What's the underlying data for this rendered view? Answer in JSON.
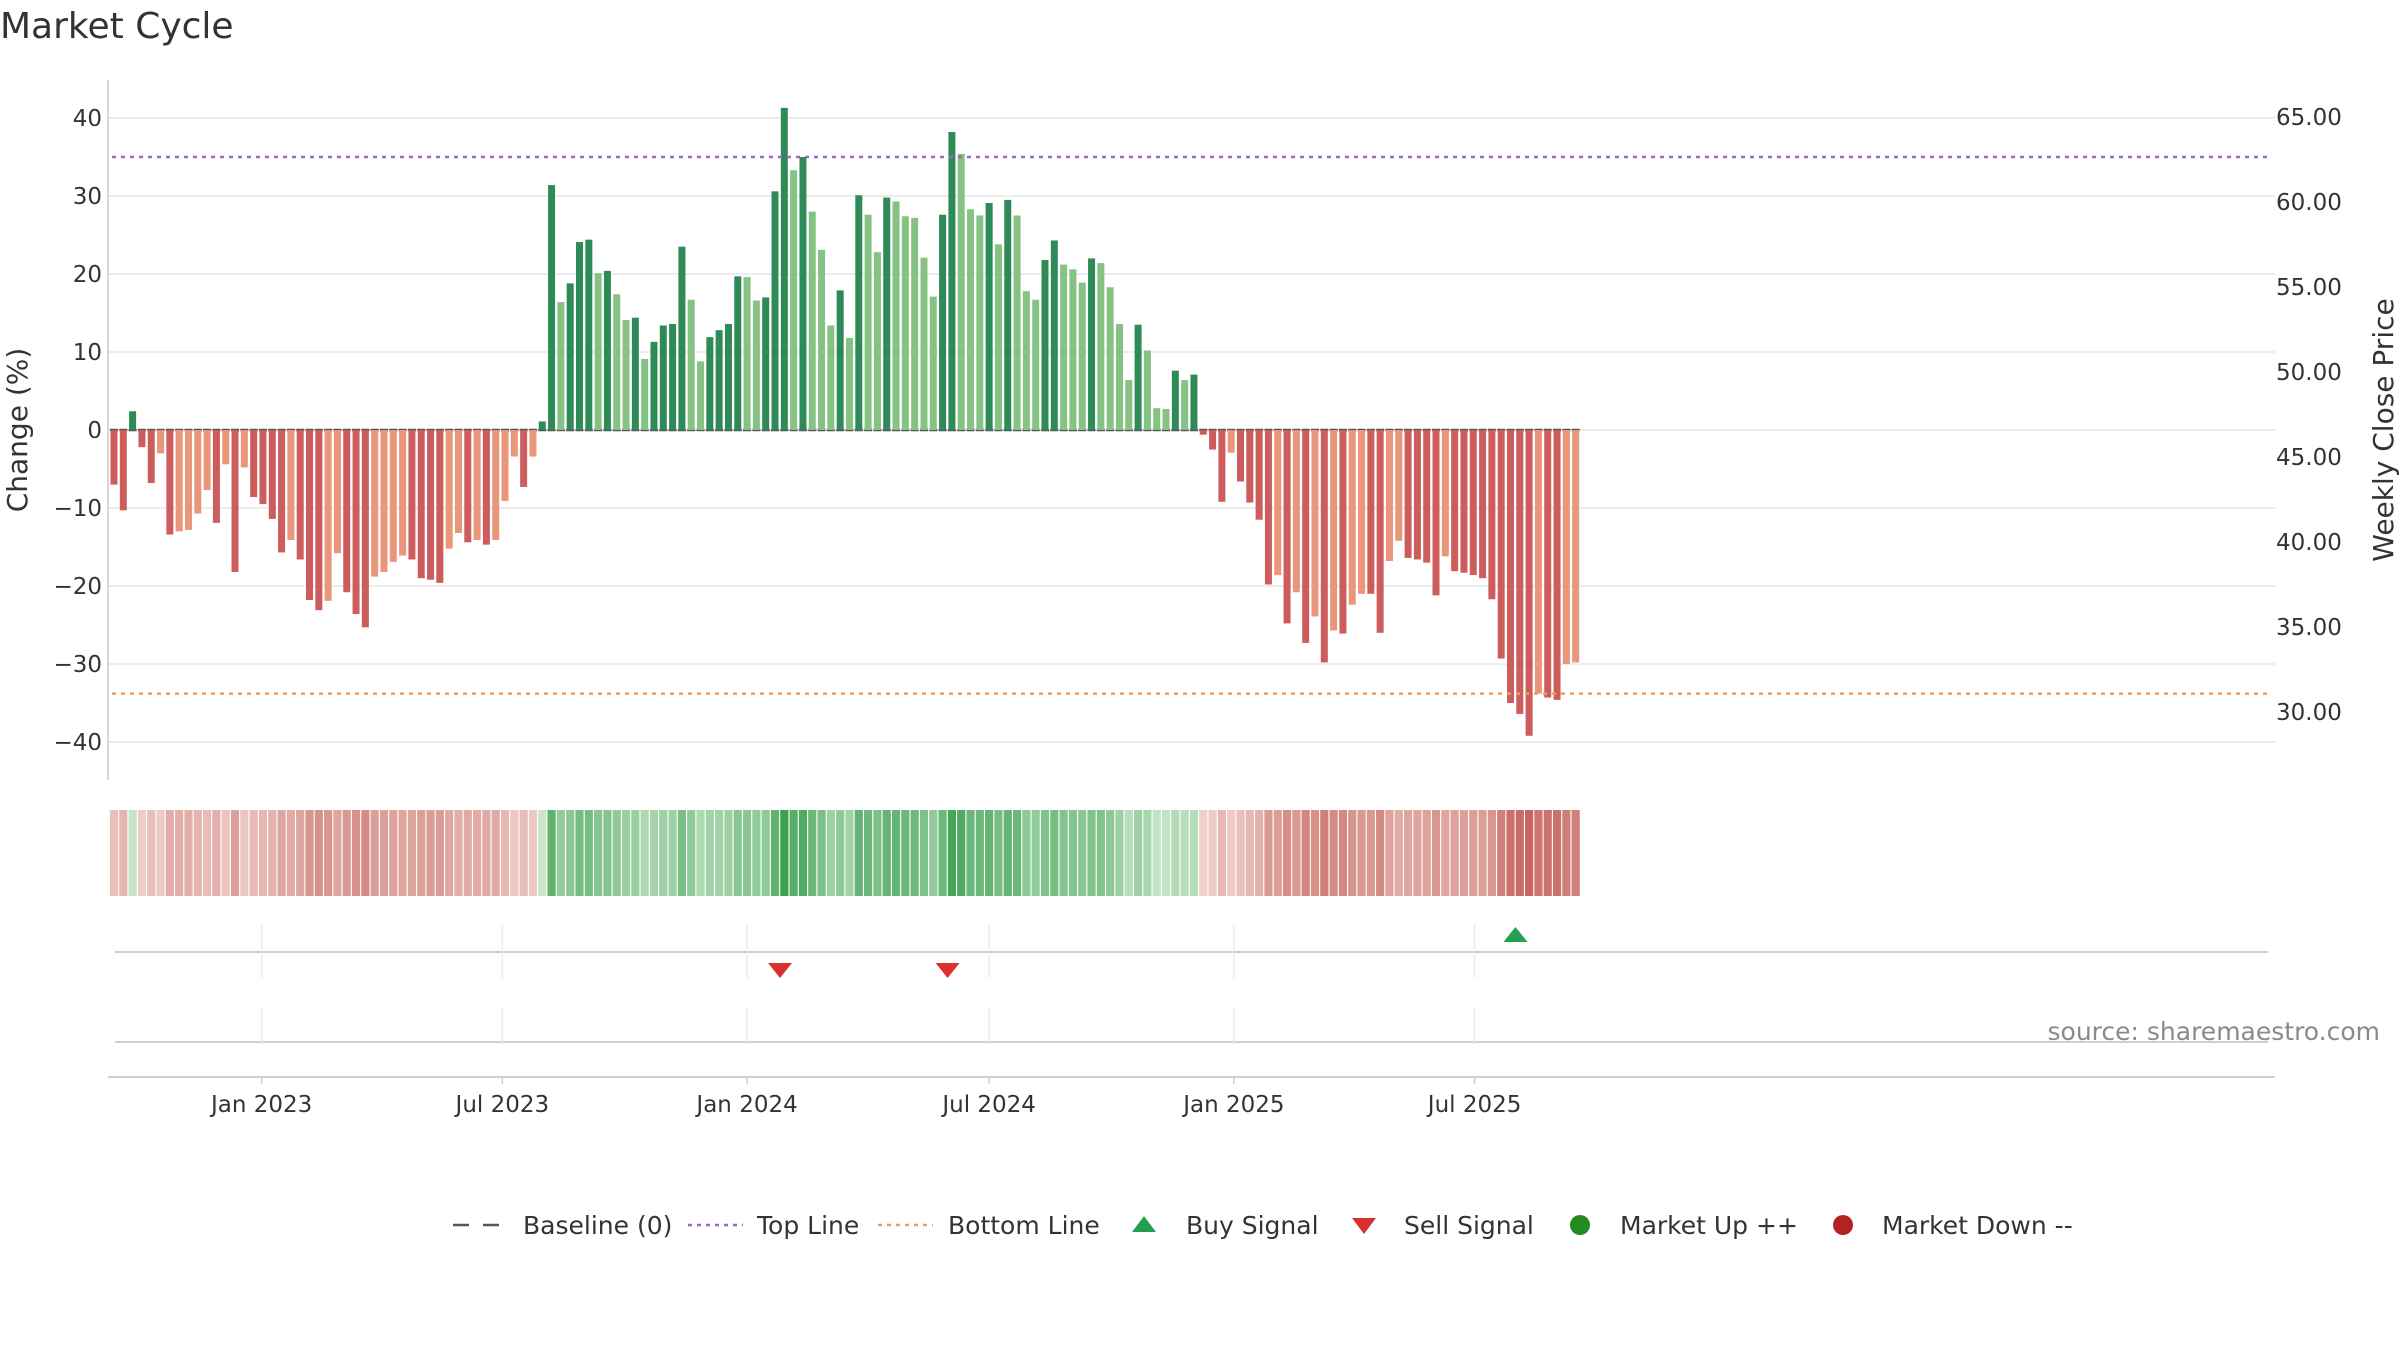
{
  "chart_data": {
    "type": "bar",
    "title": "Market Cycle",
    "ylabel": "Change (%)",
    "y2label": "Weekly Close Price",
    "ylim": [
      -45,
      45
    ],
    "y_ticks": [
      -40,
      -30,
      -20,
      -10,
      0,
      10,
      20,
      30,
      40
    ],
    "y_tick_labels": [
      "−40",
      "−30",
      "−20",
      "−10",
      "0",
      "10",
      "20",
      "30",
      "40"
    ],
    "y2_ticks": [
      "30.00",
      "35.00",
      "40.00",
      "45.00",
      "50.00",
      "55.00",
      "60.00",
      "65.00"
    ],
    "top_line": 35,
    "bottom_line": -33.8,
    "x_start": "2022-09-12",
    "x_ticks": [
      {
        "date": "2023-01-01",
        "label": "Jan 2023"
      },
      {
        "date": "2023-07-01",
        "label": "Jul 2023"
      },
      {
        "date": "2024-01-01",
        "label": "Jan 2024"
      },
      {
        "date": "2024-07-01",
        "label": "Jul 2024"
      },
      {
        "date": "2025-01-01",
        "label": "Jan 2025"
      },
      {
        "date": "2025-07-01",
        "label": "Jul 2025"
      }
    ],
    "values": [
      -7,
      -10.3,
      2.4,
      -2.2,
      -6.8,
      -3,
      -13.4,
      -13,
      -12.8,
      -10.7,
      -7.7,
      -11.9,
      -4.4,
      -18.2,
      -4.8,
      -8.6,
      -9.5,
      -11.4,
      -15.7,
      -14.1,
      -16.6,
      -21.8,
      -23.1,
      -21.9,
      -15.8,
      -20.8,
      -23.6,
      -25.3,
      -18.8,
      -18.2,
      -16.9,
      -16.1,
      -16.6,
      -19,
      -19.2,
      -19.6,
      -15.2,
      -13.2,
      -14.4,
      -14.1,
      -14.7,
      -14.1,
      -9.1,
      -3.4,
      -7.3,
      -3.4,
      1.1,
      31.4,
      16.4,
      18.8,
      24.1,
      24.4,
      20.1,
      20.4,
      17.4,
      14.1,
      14.4,
      9.1,
      11.3,
      13.4,
      13.6,
      23.5,
      16.7,
      8.8,
      11.9,
      12.8,
      13.6,
      19.7,
      19.6,
      16.6,
      17,
      30.6,
      41.3,
      33.3,
      35,
      28,
      23.1,
      13.4,
      17.9,
      11.8,
      30.1,
      27.6,
      22.8,
      29.8,
      29.3,
      27.4,
      27.2,
      22.1,
      17.1,
      27.6,
      38.2,
      35.4,
      28.3,
      27.5,
      29.1,
      23.8,
      29.5,
      27.5,
      17.8,
      16.7,
      21.8,
      24.3,
      21.2,
      20.6,
      18.9,
      22,
      21.4,
      18.3,
      13.6,
      6.4,
      13.5,
      10.2,
      2.8,
      2.7,
      7.6,
      6.4,
      7.1,
      -0.6,
      -2.5,
      -9.2,
      -2.9,
      -6.6,
      -9.3,
      -11.5,
      -19.8,
      -18.6,
      -24.8,
      -20.8,
      -27.3,
      -23.9,
      -29.8,
      -25.7,
      -26.1,
      -22.4,
      -21,
      -21,
      -26,
      -16.8,
      -14.2,
      -16.4,
      -16.6,
      -17,
      -21.2,
      -16.2,
      -18.1,
      -18.3,
      -18.6,
      -19,
      -21.7,
      -29.3,
      -35,
      -36.4,
      -39.2,
      -33.8,
      -34.3,
      -34.6,
      -30,
      -29.8
    ],
    "signals": [
      {
        "type": "sell",
        "index": 71
      },
      {
        "type": "sell",
        "index": 89
      },
      {
        "type": "buy",
        "index": 150
      }
    ],
    "colors": {
      "up_strong": "#2e8b57",
      "up_light": "#86c283",
      "down_strong": "#cd5c5c",
      "down_light": "#e9967a",
      "top_line": "#9966cc",
      "bottom_line": "#e8a060",
      "buy": "#22a050",
      "sell": "#d93030",
      "market_up": "#228b22",
      "market_down": "#b22222",
      "baseline": "#555555",
      "grid": "#e6e6e6"
    },
    "legend": [
      {
        "name": "Baseline (0)",
        "icon": "dash-line-icon"
      },
      {
        "name": "Top Line",
        "icon": "dotted-line-icon"
      },
      {
        "name": "Bottom Line",
        "icon": "dotted-line-icon"
      },
      {
        "name": "Buy Signal",
        "icon": "triangle-up-icon"
      },
      {
        "name": "Sell Signal",
        "icon": "triangle-down-icon"
      },
      {
        "name": "Market Up ++",
        "icon": "circle-icon"
      },
      {
        "name": "Market Down --",
        "icon": "circle-icon"
      }
    ],
    "legend_position": "bottom-center",
    "source": "source: sharemaestro.com"
  }
}
